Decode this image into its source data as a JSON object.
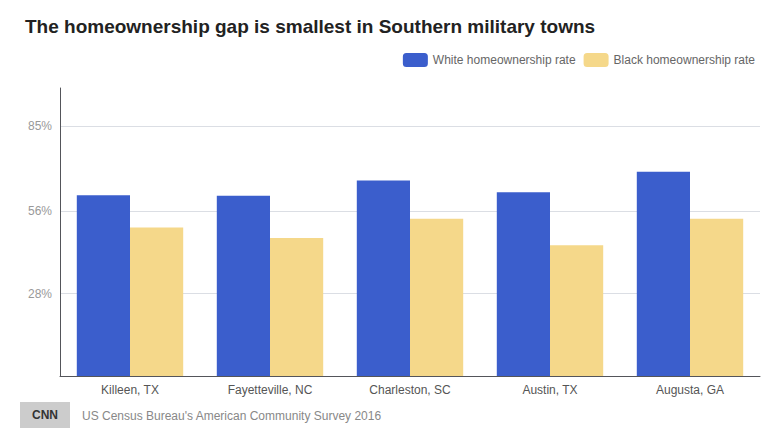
{
  "chart_data": {
    "type": "bar",
    "title": "The homeownership gap is smallest in Southern military towns",
    "categories": [
      "Killeen, TX",
      "Fayetteville, NC",
      "Charleston, SC",
      "Austin, TX",
      "Augusta, GA"
    ],
    "series": [
      {
        "name": "White homeownership rate",
        "color": "#3B5ECC",
        "values": [
          61.5,
          61.3,
          66.5,
          62.5,
          69.5
        ]
      },
      {
        "name": "Black homeownership rate",
        "color": "#F5D88A",
        "values": [
          50.5,
          47.0,
          53.5,
          44.5,
          53.5
        ]
      }
    ],
    "ylim": [
      0,
      98
    ],
    "yticks": [
      {
        "value": 28,
        "label": "28%"
      },
      {
        "value": 56,
        "label": "56%"
      },
      {
        "value": 85,
        "label": "85%"
      }
    ],
    "grid": true,
    "legend": "upper right",
    "annotations": [
      "CNN",
      "US Census Bureau's American Community Survey 2016"
    ]
  }
}
